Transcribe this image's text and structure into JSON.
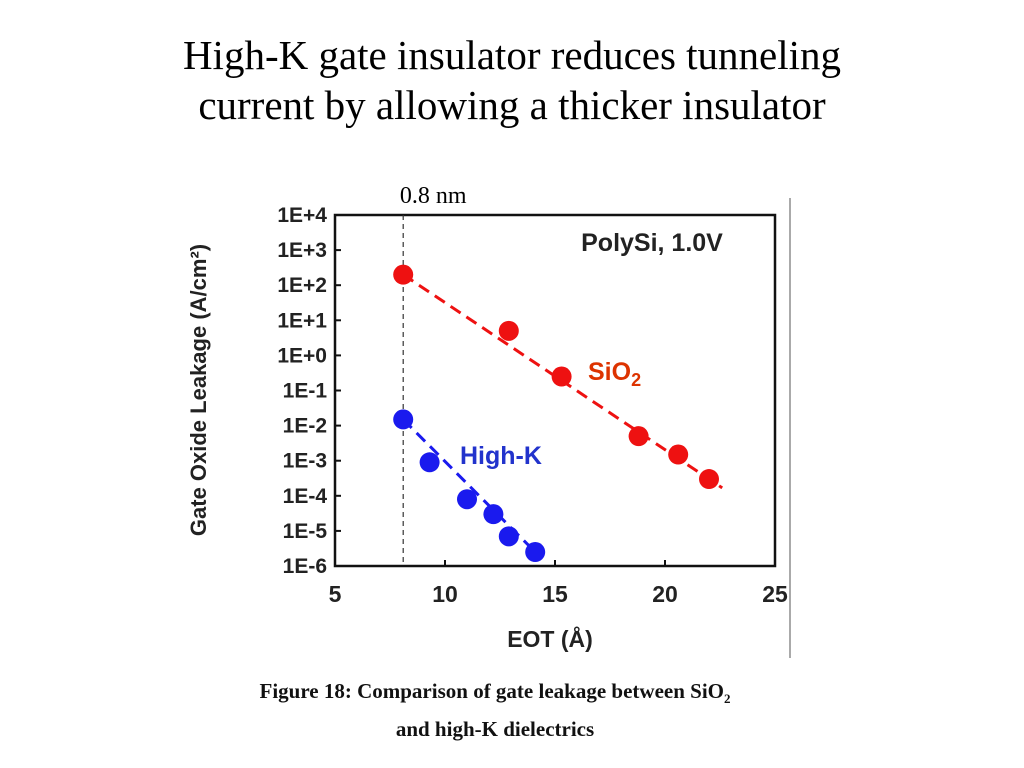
{
  "slide": {
    "title_line1": "High-K gate insulator reduces tunneling",
    "title_line2": "current by allowing a thicker insulator"
  },
  "caption": {
    "line1": "Figure 18: Comparison of gate leakage between SiO",
    "line1_subscript": "2",
    "line2": "and high-K dielectrics"
  },
  "colors": {
    "sio2": "#ee1111",
    "highk": "#1a1aee",
    "sio2_label": "#dd3300",
    "highk_label": "#2233cc"
  },
  "chart_data": {
    "type": "scatter",
    "title": "PolySi, 1.0V",
    "xlabel": "EOT  (Å)",
    "ylabel": "Gate Oxide Leakage (A/cm²)",
    "xlim": [
      5,
      25
    ],
    "ylim_log10": [
      -6,
      4
    ],
    "y_scale": "log",
    "x_ticks": [
      5,
      10,
      15,
      20,
      25
    ],
    "x_tick_labels": [
      "5",
      "10",
      "15",
      "20",
      "25"
    ],
    "y_ticks_log10": [
      4,
      3,
      2,
      1,
      0,
      -1,
      -2,
      -3,
      -4,
      -5,
      -6
    ],
    "y_tick_labels": [
      "1E+4",
      "1E+3",
      "1E+2",
      "1E+1",
      "1E+0",
      "1E-1",
      "1E-2",
      "1E-3",
      "1E-4",
      "1E-5",
      "1E-6"
    ],
    "grid": false,
    "series": [
      {
        "name": "SiO",
        "name_subscript": "2",
        "trend": "dashed",
        "points": [
          {
            "x": 8.1,
            "y": 200
          },
          {
            "x": 12.9,
            "y": 5
          },
          {
            "x": 15.3,
            "y": 0.25
          },
          {
            "x": 18.8,
            "y": 0.005
          },
          {
            "x": 20.6,
            "y": 0.0015
          },
          {
            "x": 22.0,
            "y": 0.0003
          }
        ]
      },
      {
        "name": "High-K",
        "trend": "dashed",
        "points": [
          {
            "x": 8.1,
            "y": 0.015
          },
          {
            "x": 9.3,
            "y": 0.0009
          },
          {
            "x": 11.0,
            "y": 8e-05
          },
          {
            "x": 12.2,
            "y": 3e-05
          },
          {
            "x": 12.9,
            "y": 7e-06
          },
          {
            "x": 14.1,
            "y": 2.5e-06
          }
        ]
      }
    ],
    "annotations": [
      {
        "text": "0.8 nm",
        "x": 8.1,
        "style": "dashed vertical line"
      }
    ]
  }
}
